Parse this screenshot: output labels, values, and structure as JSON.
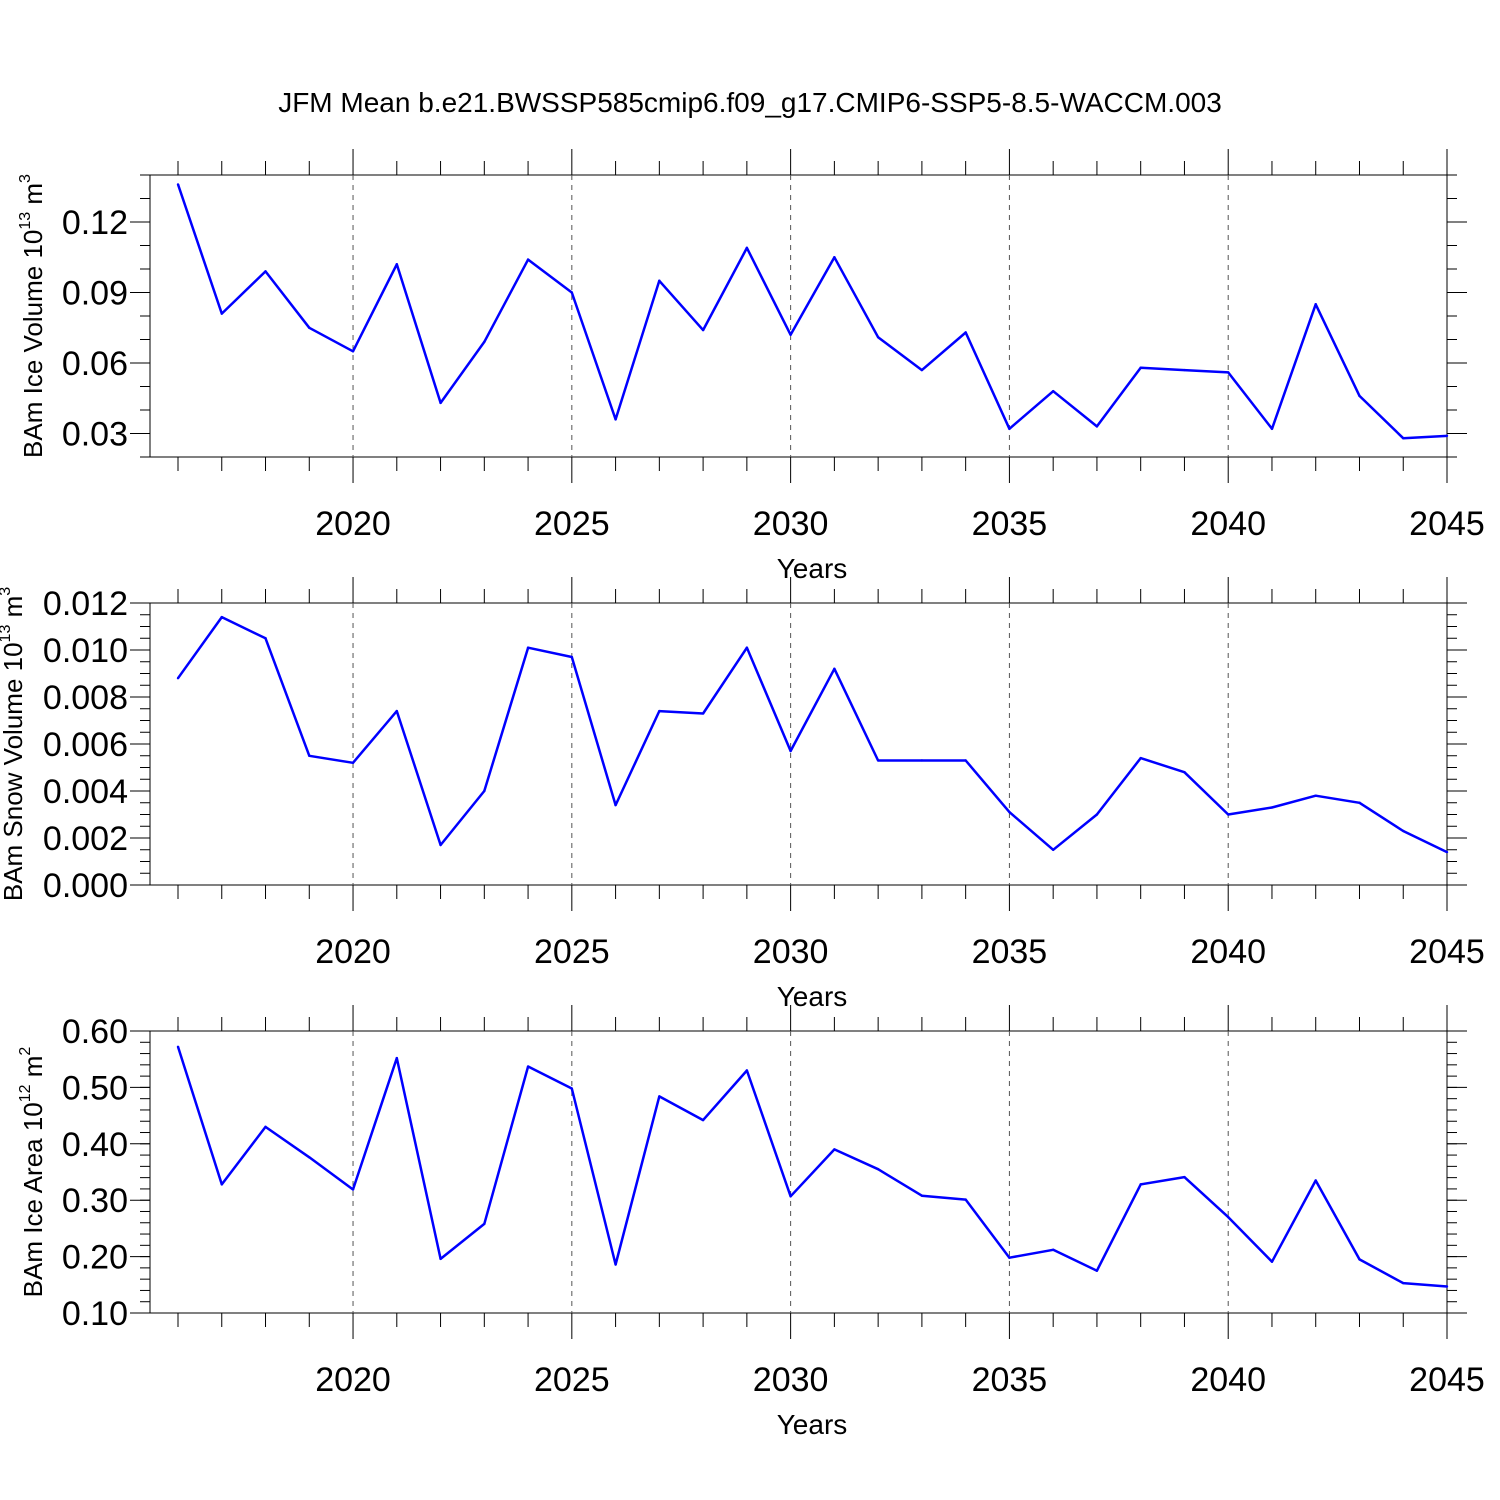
{
  "title": "JFM Mean b.e21.BWSSP585cmip6.f09_g17.CMIP6-SSP5-8.5-WACCM.003",
  "line_color": "#0000ff",
  "chart_data": [
    {
      "type": "line",
      "xlabel": "Years",
      "ylabel": {
        "main": "BAm Ice Volume 10",
        "exp": "13",
        "unit": " m",
        "unit_exp": "3"
      },
      "xlim": [
        2016,
        2045
      ],
      "ylim": [
        0.02,
        0.14
      ],
      "xticks": [
        2020,
        2025,
        2030,
        2035,
        2040,
        2045
      ],
      "yticks": [
        0.03,
        0.06,
        0.09,
        0.12
      ],
      "yticklabels": [
        "0.03",
        "0.06",
        "0.09",
        "0.12"
      ],
      "yminor": 0.01,
      "x": [
        2016,
        2017,
        2018,
        2019,
        2020,
        2021,
        2022,
        2023,
        2024,
        2025,
        2026,
        2027,
        2028,
        2029,
        2030,
        2031,
        2032,
        2033,
        2034,
        2035,
        2036,
        2037,
        2038,
        2039,
        2040,
        2041,
        2042,
        2043,
        2044,
        2045
      ],
      "series": [
        {
          "values": [
            0.136,
            0.081,
            0.099,
            0.075,
            0.065,
            0.102,
            0.043,
            0.069,
            0.104,
            0.09,
            0.036,
            0.095,
            0.074,
            0.109,
            0.072,
            0.105,
            0.071,
            0.057,
            0.073,
            0.032,
            0.048,
            0.033,
            0.058,
            0.057,
            0.056,
            0.032,
            0.085,
            0.046,
            0.028,
            0.029
          ]
        }
      ]
    },
    {
      "type": "line",
      "xlabel": "Years",
      "ylabel": {
        "main": "BAm Snow Volume 10",
        "exp": "13",
        "unit": " m",
        "unit_exp": "3"
      },
      "xlim": [
        2016,
        2045
      ],
      "ylim": [
        0.0,
        0.012
      ],
      "xticks": [
        2020,
        2025,
        2030,
        2035,
        2040,
        2045
      ],
      "yticks": [
        0.0,
        0.002,
        0.004,
        0.006,
        0.008,
        0.01,
        0.012
      ],
      "yticklabels": [
        "0.000",
        "0.002",
        "0.004",
        "0.006",
        "0.008",
        "0.010",
        "0.012"
      ],
      "yminor": 0.0005,
      "x": [
        2016,
        2017,
        2018,
        2019,
        2020,
        2021,
        2022,
        2023,
        2024,
        2025,
        2026,
        2027,
        2028,
        2029,
        2030,
        2031,
        2032,
        2033,
        2034,
        2035,
        2036,
        2037,
        2038,
        2039,
        2040,
        2041,
        2042,
        2043,
        2044,
        2045
      ],
      "series": [
        {
          "values": [
            0.0088,
            0.0114,
            0.0105,
            0.0055,
            0.0052,
            0.0074,
            0.0017,
            0.004,
            0.0101,
            0.0097,
            0.0034,
            0.0074,
            0.0073,
            0.0101,
            0.0057,
            0.0092,
            0.0053,
            0.0053,
            0.0053,
            0.0031,
            0.0015,
            0.003,
            0.0054,
            0.0048,
            0.003,
            0.0033,
            0.0038,
            0.0035,
            0.0023,
            0.0014
          ]
        }
      ]
    },
    {
      "type": "line",
      "xlabel": "Years",
      "ylabel": {
        "main": "BAm Ice Area 10",
        "exp": "12",
        "unit": " m",
        "unit_exp": "2"
      },
      "xlim": [
        2016,
        2045
      ],
      "ylim": [
        0.1,
        0.6
      ],
      "xticks": [
        2020,
        2025,
        2030,
        2035,
        2040,
        2045
      ],
      "yticks": [
        0.1,
        0.2,
        0.3,
        0.4,
        0.5,
        0.6
      ],
      "yticklabels": [
        "0.10",
        "0.20",
        "0.30",
        "0.40",
        "0.50",
        "0.60"
      ],
      "yminor": 0.02,
      "x": [
        2016,
        2017,
        2018,
        2019,
        2020,
        2021,
        2022,
        2023,
        2024,
        2025,
        2026,
        2027,
        2028,
        2029,
        2030,
        2031,
        2032,
        2033,
        2034,
        2035,
        2036,
        2037,
        2038,
        2039,
        2040,
        2041,
        2042,
        2043,
        2044,
        2045
      ],
      "series": [
        {
          "values": [
            0.572,
            0.328,
            0.43,
            0.376,
            0.319,
            0.552,
            0.196,
            0.258,
            0.537,
            0.498,
            0.186,
            0.484,
            0.442,
            0.53,
            0.307,
            0.39,
            0.355,
            0.308,
            0.301,
            0.198,
            0.212,
            0.175,
            0.328,
            0.341,
            0.27,
            0.191,
            0.335,
            0.195,
            0.153,
            0.147
          ]
        }
      ]
    }
  ]
}
